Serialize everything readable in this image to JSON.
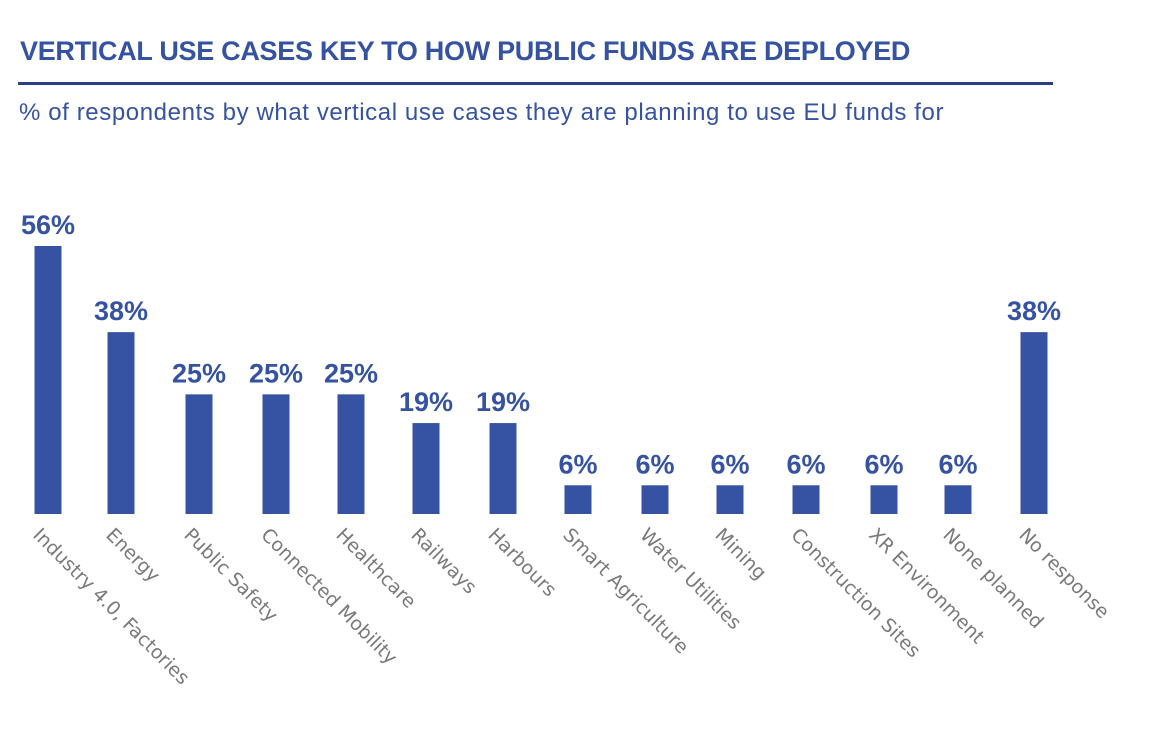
{
  "header": {
    "title": "VERTICAL USE CASES KEY TO HOW PUBLIC FUNDS ARE DEPLOYED",
    "subtitle": "% of respondents by what vertical use cases they are planning to use EU funds for"
  },
  "colors": {
    "accent": "#3553a2",
    "rule": "#2a3f86",
    "category_text": "#7a7a7a"
  },
  "chart_data": {
    "type": "bar",
    "title": "VERTICAL USE CASES KEY TO HOW PUBLIC FUNDS ARE DEPLOYED",
    "subtitle": "% of respondents by what vertical use cases they are planning to use EU funds for",
    "xlabel": "",
    "ylabel": "",
    "ylim": [
      0,
      56
    ],
    "grid": false,
    "legend": "none",
    "categories": [
      "Industry 4.0, Factories",
      "Energy",
      "Public Safety",
      "Connected Mobility",
      "Healthcare",
      "Railways",
      "Harbours",
      "Smart Agriculture",
      "Water Utilities",
      "Mining",
      "Construction Sites",
      "XR Environment",
      "None planned",
      "No response"
    ],
    "values": [
      56,
      38,
      25,
      25,
      25,
      19,
      19,
      6,
      6,
      6,
      6,
      6,
      6,
      38
    ],
    "data_labels": [
      "56%",
      "38%",
      "25%",
      "25%",
      "25%",
      "19%",
      "19%",
      "6%",
      "6%",
      "6%",
      "6%",
      "6%",
      "6%",
      "38%"
    ]
  }
}
